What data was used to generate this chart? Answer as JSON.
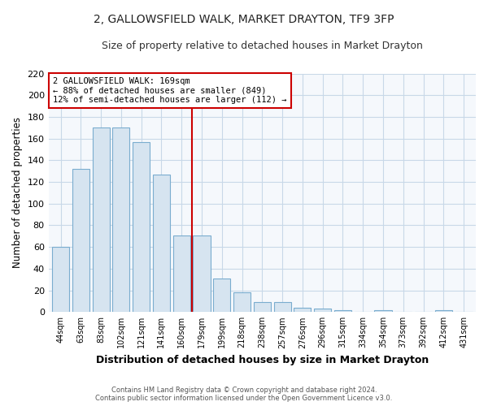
{
  "title": "2, GALLOWSFIELD WALK, MARKET DRAYTON, TF9 3FP",
  "subtitle": "Size of property relative to detached houses in Market Drayton",
  "xlabel": "Distribution of detached houses by size in Market Drayton",
  "ylabel": "Number of detached properties",
  "bin_labels": [
    "44sqm",
    "63sqm",
    "83sqm",
    "102sqm",
    "121sqm",
    "141sqm",
    "160sqm",
    "179sqm",
    "199sqm",
    "218sqm",
    "238sqm",
    "257sqm",
    "276sqm",
    "296sqm",
    "315sqm",
    "334sqm",
    "354sqm",
    "373sqm",
    "392sqm",
    "412sqm",
    "431sqm"
  ],
  "bar_values": [
    60,
    132,
    170,
    170,
    157,
    127,
    71,
    71,
    31,
    18,
    9,
    9,
    4,
    3,
    2,
    0,
    2,
    0,
    0,
    2,
    0
  ],
  "bar_color": "#d6e4f0",
  "bar_edge_color": "#7aadcf",
  "vline_color": "#cc0000",
  "ylim": [
    0,
    220
  ],
  "yticks": [
    0,
    20,
    40,
    60,
    80,
    100,
    120,
    140,
    160,
    180,
    200,
    220
  ],
  "annotation_title": "2 GALLOWSFIELD WALK: 169sqm",
  "annotation_line1": "← 88% of detached houses are smaller (849)",
  "annotation_line2": "12% of semi-detached houses are larger (112) →",
  "annotation_box_color": "#ffffff",
  "annotation_box_edge": "#cc0000",
  "footer_line1": "Contains HM Land Registry data © Crown copyright and database right 2024.",
  "footer_line2": "Contains public sector information licensed under the Open Government Licence v3.0.",
  "bg_color": "#ffffff",
  "plot_bg_color": "#f5f8fc",
  "grid_color": "#c8d8e8",
  "title_fontsize": 10,
  "subtitle_fontsize": 9,
  "vline_x_data": 6.5
}
